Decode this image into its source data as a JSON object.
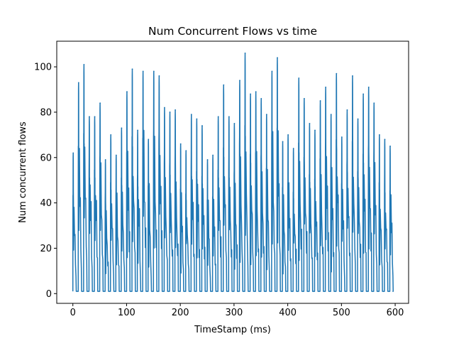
{
  "chart_data": {
    "type": "line",
    "title": "Num Concurrent Flows vs time",
    "xlabel": "TimeStamp (ms)",
    "ylabel": "Num concurrent flows",
    "xlim": [
      -30,
      625
    ],
    "ylim": [
      -4.3,
      111.3
    ],
    "xticks": [
      0,
      100,
      200,
      300,
      400,
      500,
      600
    ],
    "yticks": [
      0,
      20,
      40,
      60,
      80,
      100
    ],
    "grid": false,
    "series": [
      {
        "name": "",
        "color": "#1f77b4",
        "baseline": 1,
        "x_range": [
          0,
          595
        ],
        "period": 10,
        "peak_times": [
          0,
          10,
          20,
          30,
          40,
          50,
          60,
          70,
          80,
          90,
          100,
          110,
          120,
          130,
          140,
          150,
          160,
          170,
          180,
          190,
          200,
          210,
          220,
          230,
          240,
          250,
          260,
          270,
          280,
          290,
          300,
          310,
          320,
          330,
          340,
          350,
          360,
          370,
          380,
          390,
          400,
          410,
          420,
          430,
          440,
          450,
          460,
          470,
          480,
          490,
          500,
          510,
          520,
          530,
          540,
          550,
          560,
          570,
          580,
          590
        ],
        "peak_values": [
          62,
          93,
          101,
          78,
          78,
          84,
          59,
          70,
          61,
          73,
          89,
          99,
          72,
          98,
          68,
          98,
          96,
          82,
          80,
          81,
          66,
          63,
          79,
          77,
          74,
          59,
          61,
          78,
          92,
          78,
          75,
          94,
          106,
          88,
          89,
          86,
          79,
          98,
          104,
          67,
          70,
          64,
          95,
          86,
          75,
          72,
          85,
          91,
          79,
          97,
          69,
          81,
          96,
          77,
          88,
          91,
          84,
          70,
          68,
          65
        ]
      }
    ]
  }
}
